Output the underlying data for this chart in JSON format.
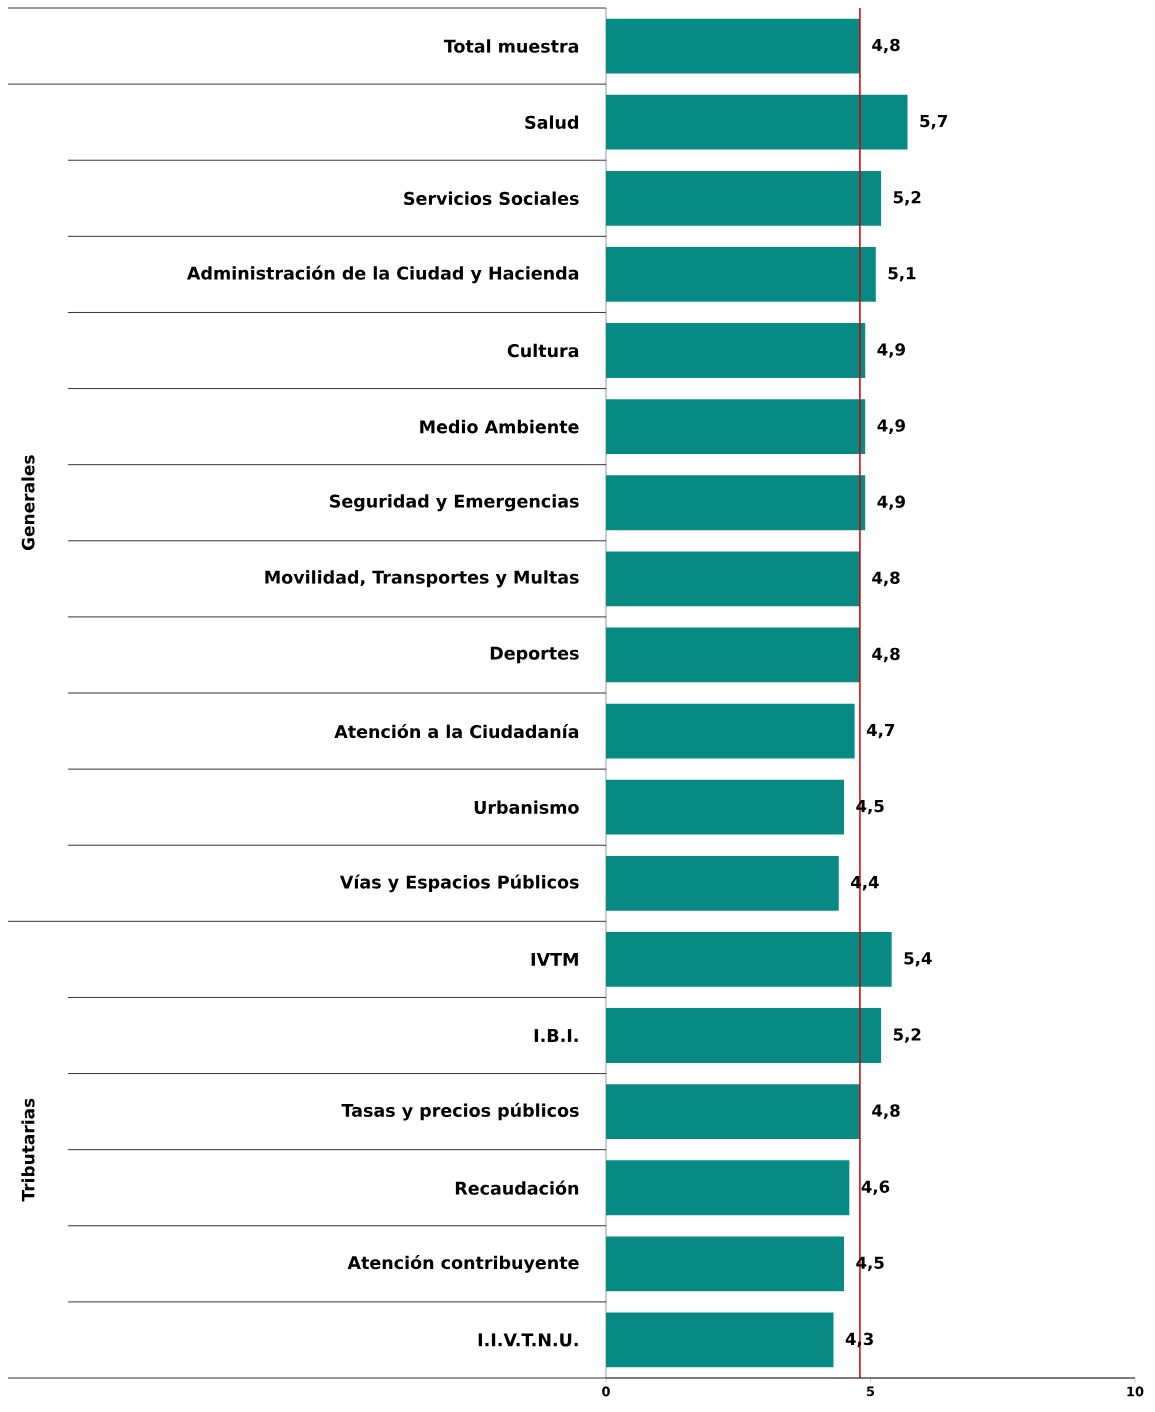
{
  "chart_data": {
    "type": "bar",
    "orientation": "horizontal",
    "categories": [
      "Total muestra",
      "Salud",
      "Servicios Sociales",
      "Administración de la Ciudad y Hacienda",
      "Cultura",
      "Medio Ambiente",
      "Seguridad y Emergencias",
      "Movilidad, Transportes y Multas",
      "Deportes",
      "Atención a la Ciudadanía",
      "Urbanismo",
      "Vías y Espacios Públicos",
      "IVTM",
      "I.B.I.",
      "Tasas y precios públicos",
      "Recaudación",
      "Atención contribuyente",
      "I.I.V.T.N.U."
    ],
    "values": [
      4.8,
      5.7,
      5.2,
      5.1,
      4.9,
      4.9,
      4.9,
      4.8,
      4.8,
      4.7,
      4.5,
      4.4,
      5.4,
      5.2,
      4.8,
      4.6,
      4.5,
      4.3
    ],
    "value_labels": [
      "4,8",
      "5,7",
      "5,2",
      "5,1",
      "4,9",
      "4,9",
      "4,9",
      "4,8",
      "4,8",
      "4,7",
      "4,5",
      "4,4",
      "5,4",
      "5,2",
      "4,8",
      "4,6",
      "4,5",
      "4,3"
    ],
    "color": "#088a84",
    "xlim": [
      0,
      10
    ],
    "xticks": [
      0,
      5,
      10
    ],
    "ref_lines": [
      {
        "axis": "x",
        "value": 4.8,
        "color": "#cc0000"
      }
    ],
    "annotations": [
      "Generales",
      "Tributarias"
    ],
    "grid": false
  }
}
